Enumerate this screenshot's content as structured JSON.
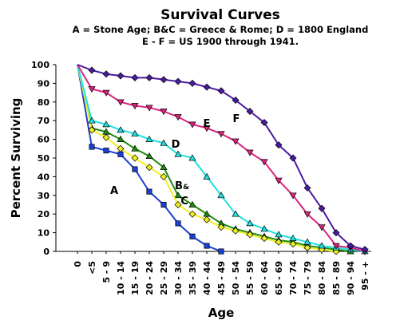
{
  "chart_data": {
    "type": "line",
    "title": "Survival Curves",
    "subtitle_lines": [
      "A = Stone Age; B&C = Greece & Rome; D = 1800 England",
      "E - F = US 1900 through 1941."
    ],
    "xlabel": "Age",
    "ylabel": "Percent Surviving",
    "ylim": [
      0,
      100
    ],
    "yticks": [
      0,
      10,
      20,
      30,
      40,
      50,
      60,
      70,
      80,
      90,
      100
    ],
    "grid": false,
    "legend": "none",
    "categories": [
      "0",
      "<5",
      "5 - 9",
      "10 - 14",
      "15 - 19",
      "20 - 24",
      "25 - 29",
      "30 - 34",
      "35 - 39",
      "40 - 44",
      "45 - 49",
      "50 - 54",
      "55 - 59",
      "60 - 64",
      "65 - 69",
      "70 - 74",
      "75 - 79",
      "80 - 84",
      "85 - 89",
      "90 - 94",
      "95 - +"
    ],
    "series": [
      {
        "name": "A",
        "color": "#1c3fd4",
        "marker": "square",
        "values": [
          100,
          56,
          54,
          52,
          44,
          32,
          25,
          15,
          8,
          3,
          0,
          null,
          null,
          null,
          null,
          null,
          null,
          null,
          null,
          null,
          null
        ]
      },
      {
        "name": "B",
        "color": "#1e8c10",
        "marker": "triangle-up",
        "values": [
          100,
          66,
          64,
          60,
          55,
          51,
          45,
          30,
          25,
          20,
          15,
          12,
          10,
          8,
          6,
          5,
          3,
          2,
          1,
          0,
          null
        ]
      },
      {
        "name": "C",
        "color": "#f0f020",
        "marker": "diamond",
        "values": [
          100,
          65,
          61,
          55,
          50,
          45,
          40,
          25,
          20,
          17,
          13,
          11,
          9,
          7,
          5,
          4,
          2,
          1,
          0,
          null,
          null
        ]
      },
      {
        "name": "D",
        "color": "#20e0e0",
        "marker": "triangle-up",
        "values": [
          100,
          70,
          68,
          65,
          63,
          60,
          58,
          52,
          50,
          40,
          30,
          20,
          15,
          12,
          9,
          7,
          5,
          3,
          2,
          1,
          0
        ]
      },
      {
        "name": "E",
        "color": "#d8247c",
        "marker": "triangle-down",
        "values": [
          100,
          87,
          85,
          80,
          78,
          77,
          75,
          72,
          68,
          66,
          63,
          59,
          53,
          48,
          38,
          30,
          20,
          13,
          3,
          2,
          0
        ]
      },
      {
        "name": "F",
        "color": "#4a1aa0",
        "marker": "diamond",
        "values": [
          100,
          97,
          95,
          94,
          93,
          93,
          92,
          91,
          90,
          88,
          86,
          81,
          75,
          69,
          57,
          50,
          34,
          23,
          10,
          3,
          1
        ]
      }
    ],
    "annotations": [
      {
        "text": "A",
        "series": "A"
      },
      {
        "text": "B",
        "series": "B"
      },
      {
        "text": "&",
        "series": "B"
      },
      {
        "text": "C",
        "series": "C"
      },
      {
        "text": "D",
        "series": "D"
      },
      {
        "text": "E",
        "series": "E"
      },
      {
        "text": "F",
        "series": "F"
      }
    ]
  }
}
